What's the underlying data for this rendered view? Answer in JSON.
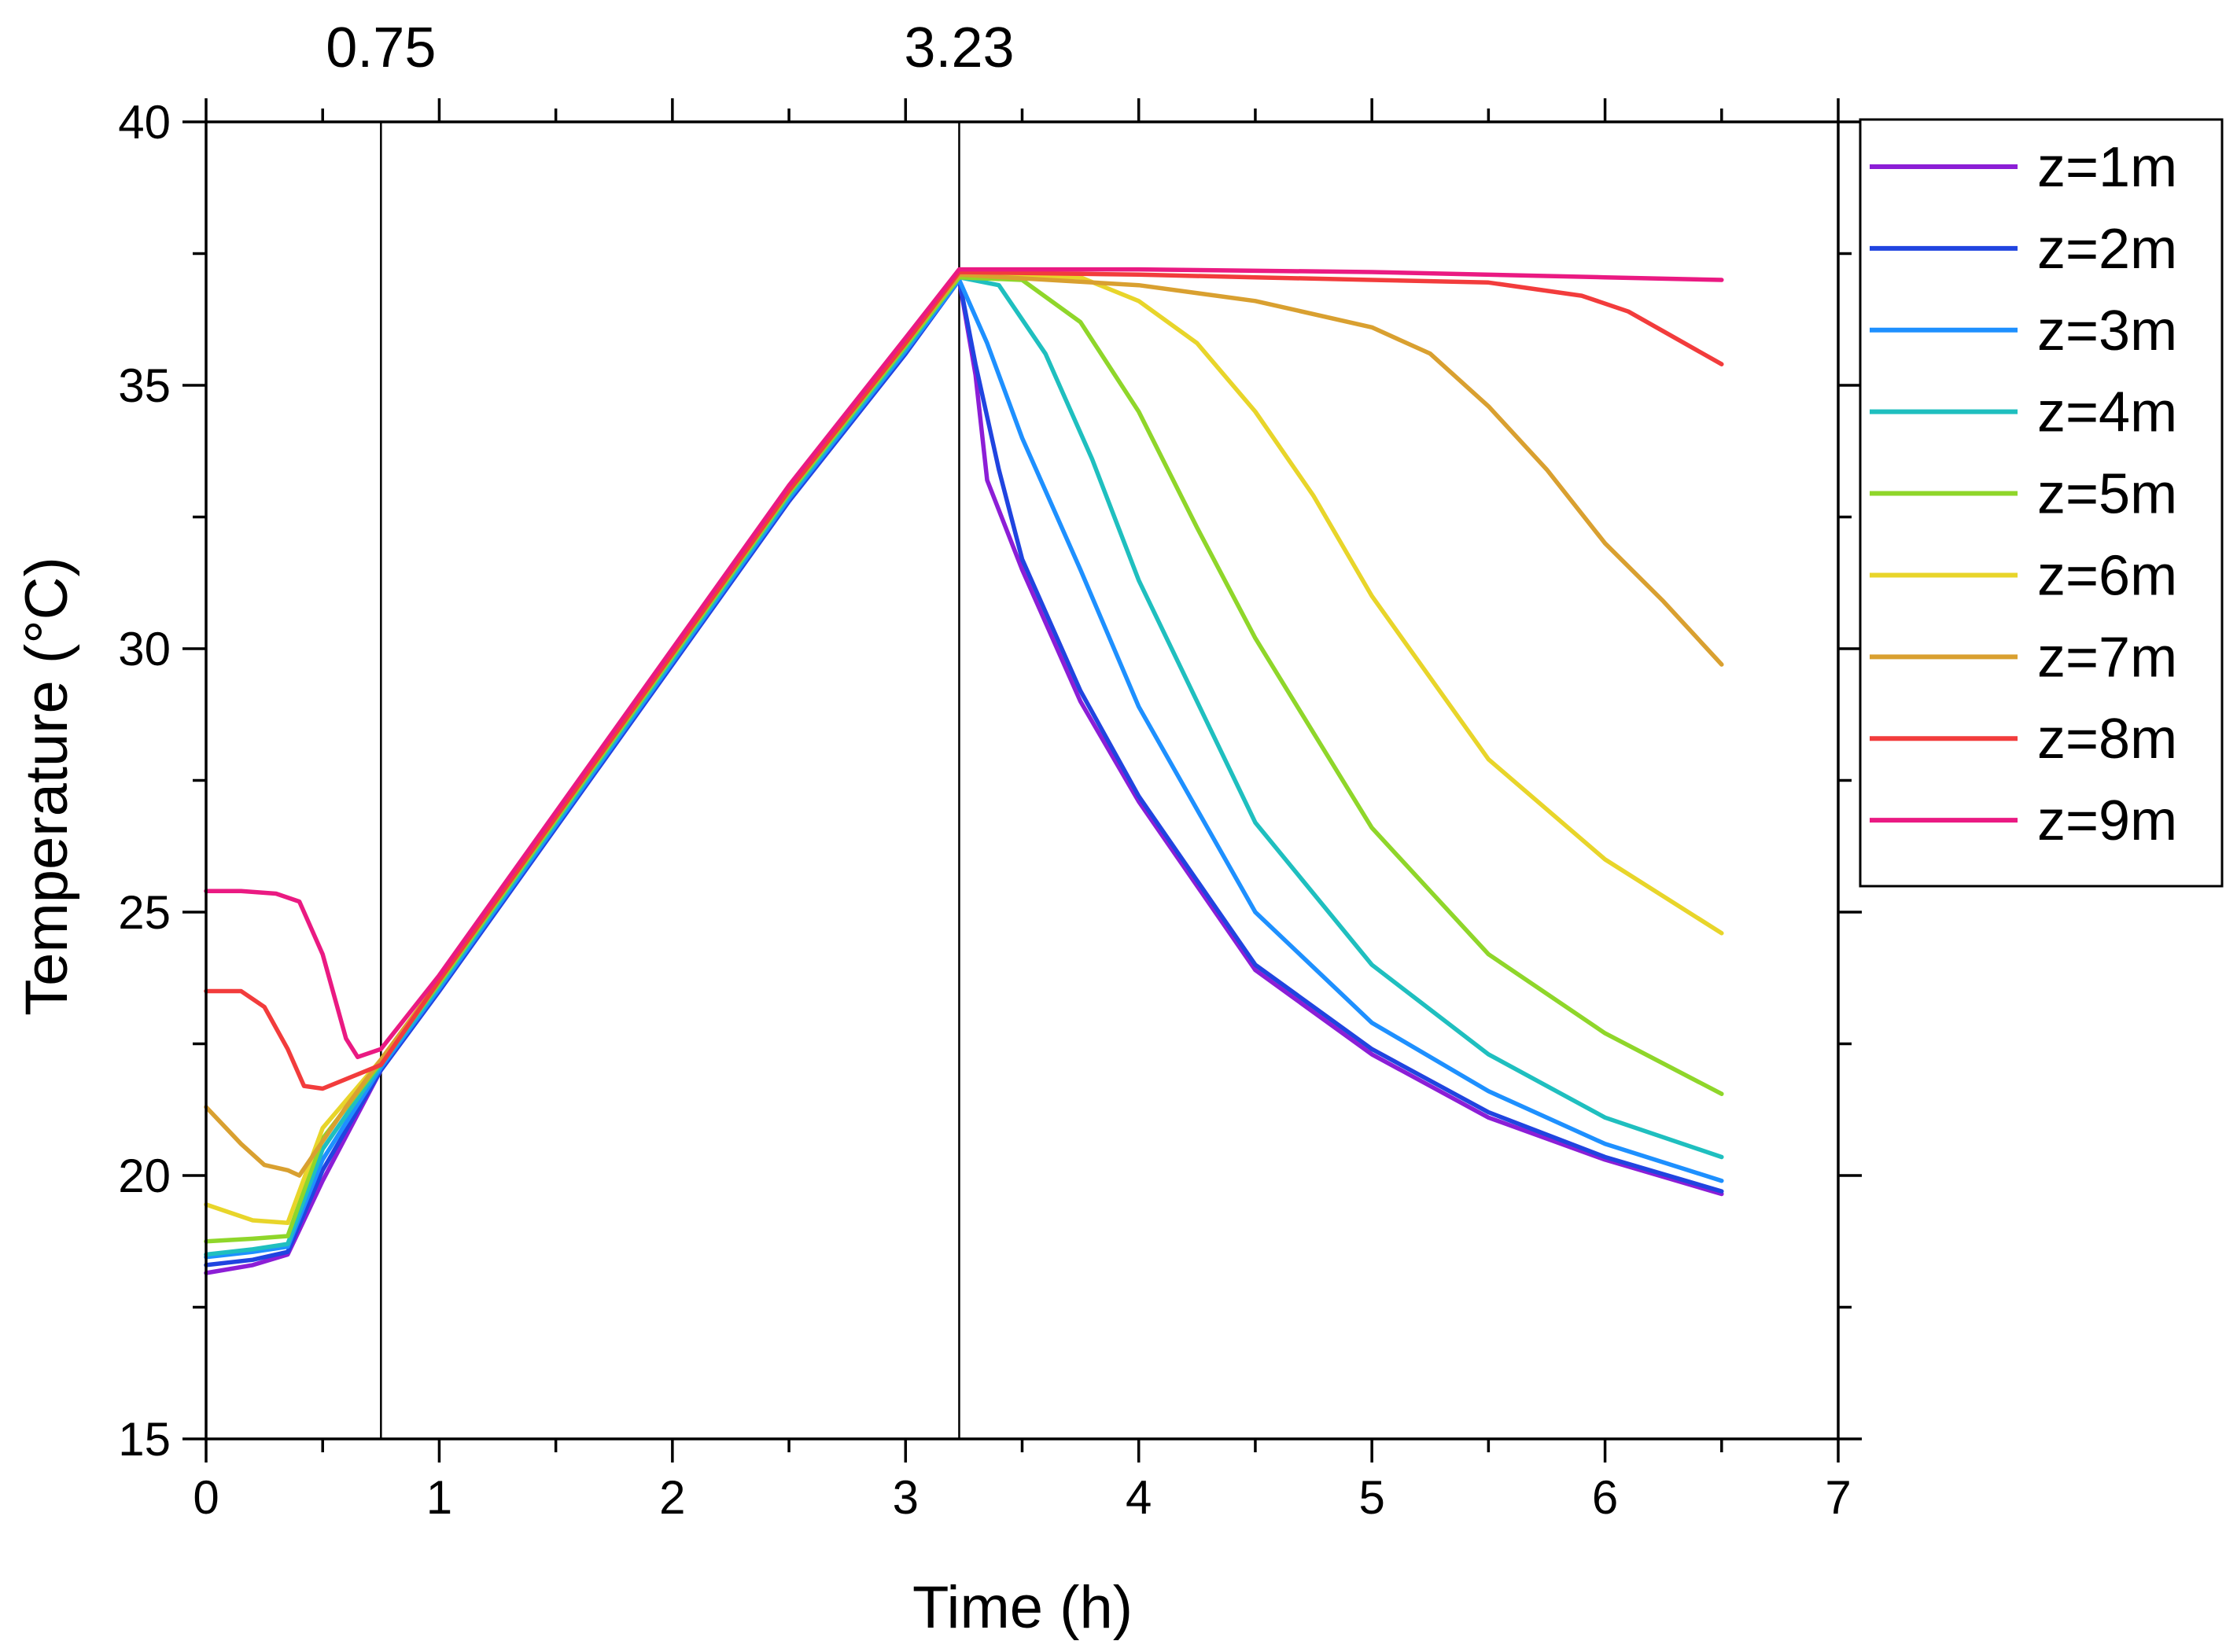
{
  "chart_data": {
    "type": "line",
    "xlabel": "Time (h)",
    "ylabel": "Temperature (°C)",
    "xlim": [
      0,
      7
    ],
    "ylim": [
      15,
      40
    ],
    "xticks": [
      "0",
      "1",
      "2",
      "3",
      "4",
      "5",
      "6",
      "7"
    ],
    "yticks": [
      "15",
      "20",
      "25",
      "30",
      "35",
      "40"
    ],
    "vlines": [
      {
        "x": 0.75,
        "label": "0.75"
      },
      {
        "x": 3.23,
        "label": "3.23"
      }
    ],
    "legend_position": "right",
    "series": [
      {
        "name": "z=1m",
        "color": "#8c1ed6",
        "points": [
          [
            0,
            18.15
          ],
          [
            0.2,
            18.3
          ],
          [
            0.35,
            18.5
          ],
          [
            0.5,
            19.9
          ],
          [
            0.75,
            22.0
          ],
          [
            1.0,
            23.5
          ],
          [
            1.5,
            26.6
          ],
          [
            2.0,
            29.7
          ],
          [
            2.5,
            32.8
          ],
          [
            3.0,
            35.6
          ],
          [
            3.23,
            37.0
          ],
          [
            3.3,
            35.2
          ],
          [
            3.35,
            33.2
          ],
          [
            3.5,
            31.5
          ],
          [
            3.75,
            29.0
          ],
          [
            4.0,
            27.1
          ],
          [
            4.5,
            23.9
          ],
          [
            5.0,
            22.3
          ],
          [
            5.5,
            21.1
          ],
          [
            6.0,
            20.3
          ],
          [
            6.5,
            19.65
          ]
        ]
      },
      {
        "name": "z=2m",
        "color": "#2044e0",
        "points": [
          [
            0,
            18.3
          ],
          [
            0.2,
            18.4
          ],
          [
            0.35,
            18.55
          ],
          [
            0.5,
            20.1
          ],
          [
            0.75,
            22.0
          ],
          [
            1.0,
            23.5
          ],
          [
            1.5,
            26.6
          ],
          [
            2.0,
            29.7
          ],
          [
            2.5,
            32.8
          ],
          [
            3.0,
            35.6
          ],
          [
            3.23,
            37.0
          ],
          [
            3.3,
            35.4
          ],
          [
            3.4,
            33.4
          ],
          [
            3.5,
            31.7
          ],
          [
            3.75,
            29.2
          ],
          [
            4.0,
            27.2
          ],
          [
            4.5,
            24.0
          ],
          [
            5.0,
            22.4
          ],
          [
            5.5,
            21.2
          ],
          [
            6.0,
            20.35
          ],
          [
            6.5,
            19.7
          ]
        ]
      },
      {
        "name": "z=3m",
        "color": "#1e90ff",
        "points": [
          [
            0,
            18.45
          ],
          [
            0.2,
            18.55
          ],
          [
            0.35,
            18.65
          ],
          [
            0.5,
            20.3
          ],
          [
            0.75,
            22.05
          ],
          [
            1.0,
            23.55
          ],
          [
            1.5,
            26.65
          ],
          [
            2.0,
            29.75
          ],
          [
            2.5,
            32.85
          ],
          [
            3.0,
            35.65
          ],
          [
            3.23,
            37.0
          ],
          [
            3.35,
            35.8
          ],
          [
            3.5,
            34.0
          ],
          [
            3.75,
            31.5
          ],
          [
            4.0,
            28.9
          ],
          [
            4.5,
            25.0
          ],
          [
            5.0,
            22.9
          ],
          [
            5.5,
            21.6
          ],
          [
            6.0,
            20.6
          ],
          [
            6.5,
            19.9
          ]
        ]
      },
      {
        "name": "z=4m",
        "color": "#1fbfbf",
        "points": [
          [
            0,
            18.5
          ],
          [
            0.2,
            18.6
          ],
          [
            0.35,
            18.7
          ],
          [
            0.5,
            20.5
          ],
          [
            0.75,
            22.1
          ],
          [
            1.0,
            23.6
          ],
          [
            1.5,
            26.7
          ],
          [
            2.0,
            29.8
          ],
          [
            2.5,
            32.9
          ],
          [
            3.0,
            35.7
          ],
          [
            3.23,
            37.05
          ],
          [
            3.4,
            36.9
          ],
          [
            3.6,
            35.6
          ],
          [
            3.8,
            33.6
          ],
          [
            4.0,
            31.3
          ],
          [
            4.5,
            26.7
          ],
          [
            5.0,
            24.0
          ],
          [
            5.5,
            22.3
          ],
          [
            6.0,
            21.1
          ],
          [
            6.5,
            20.35
          ]
        ]
      },
      {
        "name": "z=5m",
        "color": "#8fd62a",
        "points": [
          [
            0,
            18.75
          ],
          [
            0.2,
            18.8
          ],
          [
            0.35,
            18.85
          ],
          [
            0.5,
            20.7
          ],
          [
            0.75,
            22.15
          ],
          [
            1.0,
            23.65
          ],
          [
            1.5,
            26.75
          ],
          [
            2.0,
            29.85
          ],
          [
            2.5,
            32.95
          ],
          [
            3.0,
            35.75
          ],
          [
            3.23,
            37.05
          ],
          [
            3.5,
            37.0
          ],
          [
            3.75,
            36.2
          ],
          [
            4.0,
            34.5
          ],
          [
            4.25,
            32.3
          ],
          [
            4.5,
            30.2
          ],
          [
            5.0,
            26.6
          ],
          [
            5.5,
            24.2
          ],
          [
            6.0,
            22.7
          ],
          [
            6.5,
            21.55
          ]
        ]
      },
      {
        "name": "z=6m",
        "color": "#e8d52a",
        "points": [
          [
            0,
            19.45
          ],
          [
            0.2,
            19.15
          ],
          [
            0.35,
            19.1
          ],
          [
            0.5,
            20.9
          ],
          [
            0.75,
            22.2
          ],
          [
            1.0,
            23.7
          ],
          [
            1.5,
            26.8
          ],
          [
            2.0,
            29.9
          ],
          [
            2.5,
            33.0
          ],
          [
            3.0,
            35.8
          ],
          [
            3.23,
            37.1
          ],
          [
            3.75,
            37.05
          ],
          [
            4.0,
            36.6
          ],
          [
            4.25,
            35.8
          ],
          [
            4.5,
            34.5
          ],
          [
            4.75,
            32.9
          ],
          [
            5.0,
            31.0
          ],
          [
            5.5,
            27.9
          ],
          [
            6.0,
            26.0
          ],
          [
            6.5,
            24.6
          ]
        ]
      },
      {
        "name": "z=7m",
        "color": "#d9a030",
        "points": [
          [
            0,
            21.3
          ],
          [
            0.15,
            20.6
          ],
          [
            0.25,
            20.2
          ],
          [
            0.35,
            20.1
          ],
          [
            0.4,
            20.0
          ],
          [
            0.6,
            21.3
          ],
          [
            0.75,
            22.2
          ],
          [
            1.0,
            23.7
          ],
          [
            1.5,
            26.8
          ],
          [
            2.0,
            29.9
          ],
          [
            2.5,
            33.0
          ],
          [
            3.0,
            35.8
          ],
          [
            3.23,
            37.1
          ],
          [
            4.0,
            36.9
          ],
          [
            4.5,
            36.6
          ],
          [
            5.0,
            36.1
          ],
          [
            5.25,
            35.6
          ],
          [
            5.5,
            34.6
          ],
          [
            5.75,
            33.4
          ],
          [
            6.0,
            32.0
          ],
          [
            6.25,
            30.9
          ],
          [
            6.5,
            29.7
          ]
        ]
      },
      {
        "name": "z=8m",
        "color": "#f23c3c",
        "points": [
          [
            0,
            23.5
          ],
          [
            0.15,
            23.5
          ],
          [
            0.25,
            23.2
          ],
          [
            0.35,
            22.4
          ],
          [
            0.42,
            21.7
          ],
          [
            0.5,
            21.65
          ],
          [
            0.75,
            22.1
          ],
          [
            1.0,
            23.7
          ],
          [
            1.5,
            26.8
          ],
          [
            2.0,
            29.9
          ],
          [
            2.5,
            33.0
          ],
          [
            3.0,
            35.8
          ],
          [
            3.23,
            37.15
          ],
          [
            4.0,
            37.1
          ],
          [
            4.5,
            37.05
          ],
          [
            5.0,
            37.0
          ],
          [
            5.5,
            36.95
          ],
          [
            5.9,
            36.7
          ],
          [
            6.1,
            36.4
          ],
          [
            6.3,
            35.9
          ],
          [
            6.5,
            35.4
          ]
        ]
      },
      {
        "name": "z=9m",
        "color": "#ea1a82",
        "points": [
          [
            0,
            25.4
          ],
          [
            0.15,
            25.4
          ],
          [
            0.3,
            25.35
          ],
          [
            0.4,
            25.2
          ],
          [
            0.5,
            24.2
          ],
          [
            0.6,
            22.6
          ],
          [
            0.65,
            22.25
          ],
          [
            0.75,
            22.4
          ],
          [
            1.0,
            23.8
          ],
          [
            1.5,
            26.9
          ],
          [
            2.0,
            30.0
          ],
          [
            2.5,
            33.1
          ],
          [
            3.0,
            35.9
          ],
          [
            3.23,
            37.2
          ],
          [
            4.0,
            37.2
          ],
          [
            5.0,
            37.15
          ],
          [
            6.0,
            37.05
          ],
          [
            6.5,
            37.0
          ]
        ]
      }
    ]
  }
}
